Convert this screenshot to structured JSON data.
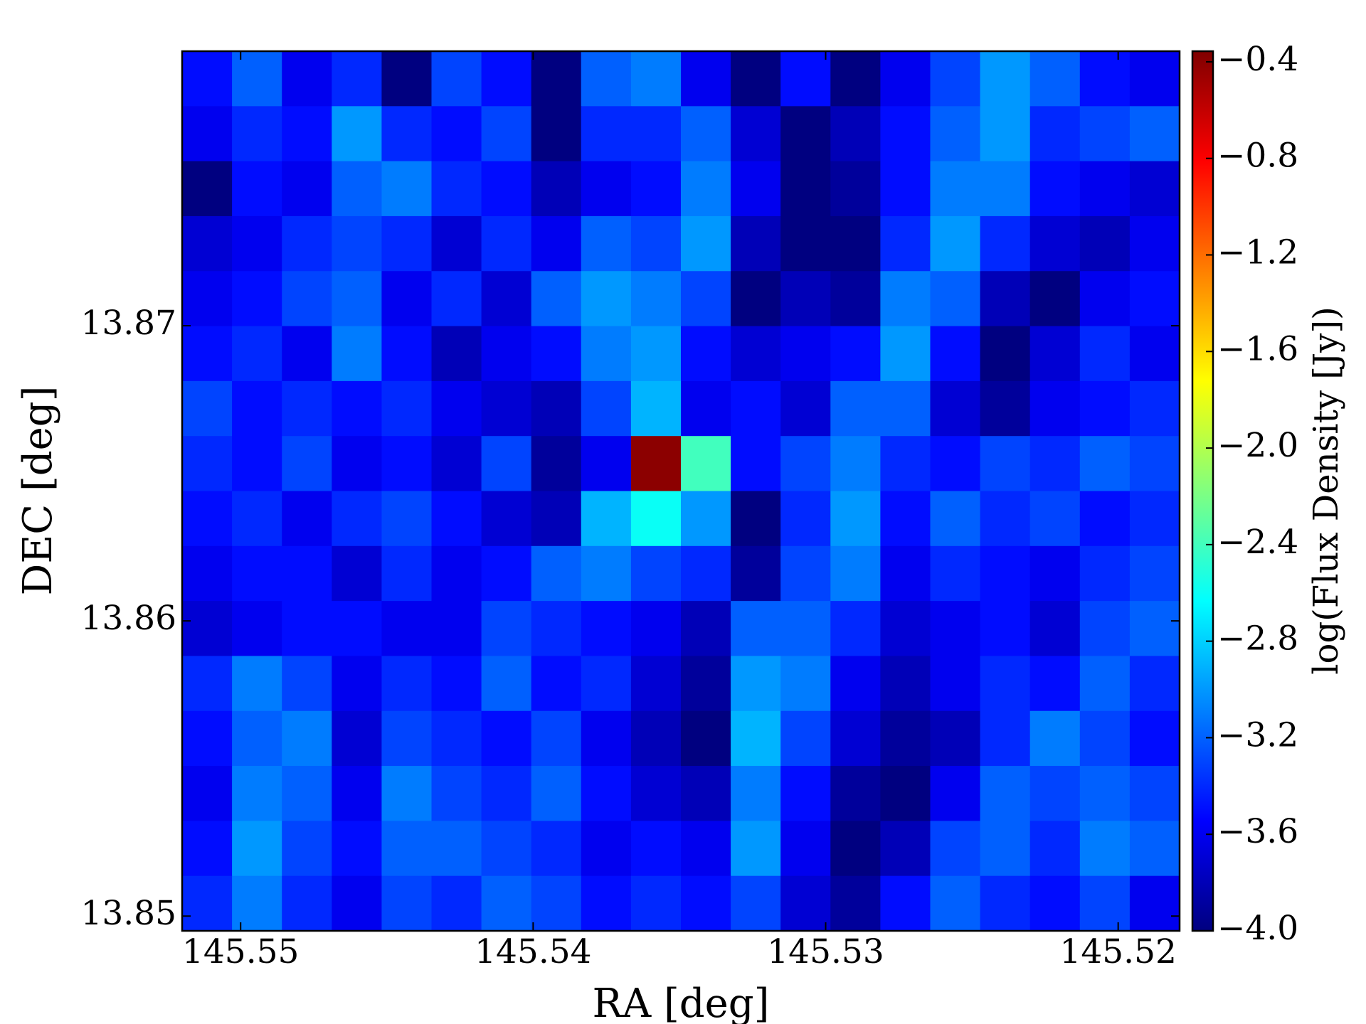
{
  "chart_data": {
    "type": "heatmap",
    "xlabel": "RA [deg]",
    "ylabel": "DEC [deg]",
    "colorbar_label": "log(Flux Density [Jy])",
    "colormap": "jet",
    "xlim": [
      145.552,
      145.5179
    ],
    "ylim": [
      13.8495,
      13.8793
    ],
    "xticks": [
      145.55,
      145.54,
      145.53,
      145.52
    ],
    "yticks": [
      13.85,
      13.86,
      13.87
    ],
    "clim": [
      -4.0,
      -0.356
    ],
    "cticks": [
      {
        "value": -4.0,
        "label": "−4.0"
      },
      {
        "value": -3.6,
        "label": "−3.6"
      },
      {
        "value": -3.2,
        "label": "−3.2"
      },
      {
        "value": -2.8,
        "label": "−2.8"
      },
      {
        "value": -2.4,
        "label": "−2.4"
      },
      {
        "value": -2.0,
        "label": "−2.0"
      },
      {
        "value": -1.6,
        "label": "−1.6"
      },
      {
        "value": -1.2,
        "label": "−1.2"
      },
      {
        "value": -0.8,
        "label": "−0.8"
      },
      {
        "value": -0.4,
        "label": "−0.4"
      }
    ],
    "z": [
      [
        -3.5,
        -3.2,
        -3.6,
        -3.4,
        -4.0,
        -3.3,
        -3.5,
        -4.0,
        -3.2,
        -3.1,
        -3.6,
        -4.0,
        -3.5,
        -4.0,
        -3.6,
        -3.3,
        -3.0,
        -3.2,
        -3.5,
        -3.6
      ],
      [
        -3.6,
        -3.4,
        -3.5,
        -3.0,
        -3.4,
        -3.5,
        -3.3,
        -4.0,
        -3.4,
        -3.4,
        -3.2,
        -3.7,
        -4.0,
        -3.8,
        -3.5,
        -3.2,
        -3.0,
        -3.4,
        -3.3,
        -3.2
      ],
      [
        -4.0,
        -3.5,
        -3.6,
        -3.2,
        -3.1,
        -3.4,
        -3.5,
        -3.8,
        -3.6,
        -3.5,
        -3.1,
        -3.6,
        -4.0,
        -3.9,
        -3.5,
        -3.1,
        -3.1,
        -3.5,
        -3.6,
        -3.7
      ],
      [
        -3.7,
        -3.6,
        -3.4,
        -3.3,
        -3.4,
        -3.7,
        -3.4,
        -3.6,
        -3.2,
        -3.3,
        -3.0,
        -3.8,
        -4.0,
        -4.0,
        -3.4,
        -3.0,
        -3.4,
        -3.7,
        -3.8,
        -3.6
      ],
      [
        -3.6,
        -3.5,
        -3.3,
        -3.2,
        -3.6,
        -3.4,
        -3.7,
        -3.2,
        -3.0,
        -3.1,
        -3.3,
        -4.0,
        -3.8,
        -3.9,
        -3.1,
        -3.2,
        -3.8,
        -4.0,
        -3.6,
        -3.5
      ],
      [
        -3.5,
        -3.4,
        -3.6,
        -3.1,
        -3.5,
        -3.8,
        -3.6,
        -3.5,
        -3.1,
        -3.0,
        -3.5,
        -3.7,
        -3.6,
        -3.5,
        -3.0,
        -3.5,
        -4.0,
        -3.7,
        -3.4,
        -3.6
      ],
      [
        -3.3,
        -3.5,
        -3.4,
        -3.5,
        -3.4,
        -3.6,
        -3.7,
        -3.8,
        -3.3,
        -2.9,
        -3.6,
        -3.5,
        -3.7,
        -3.2,
        -3.2,
        -3.7,
        -3.9,
        -3.6,
        -3.5,
        -3.4
      ],
      [
        -3.4,
        -3.5,
        -3.3,
        -3.6,
        -3.5,
        -3.7,
        -3.3,
        -3.9,
        -3.6,
        -0.4,
        -2.4,
        -3.5,
        -3.3,
        -3.1,
        -3.4,
        -3.5,
        -3.3,
        -3.4,
        -3.2,
        -3.3
      ],
      [
        -3.5,
        -3.4,
        -3.6,
        -3.4,
        -3.3,
        -3.5,
        -3.7,
        -3.8,
        -2.9,
        -2.6,
        -3.0,
        -4.0,
        -3.4,
        -3.0,
        -3.5,
        -3.2,
        -3.4,
        -3.3,
        -3.5,
        -3.4
      ],
      [
        -3.6,
        -3.5,
        -3.5,
        -3.7,
        -3.4,
        -3.6,
        -3.5,
        -3.2,
        -3.1,
        -3.3,
        -3.4,
        -3.9,
        -3.3,
        -3.1,
        -3.6,
        -3.4,
        -3.5,
        -3.6,
        -3.4,
        -3.3
      ],
      [
        -3.7,
        -3.6,
        -3.5,
        -3.5,
        -3.6,
        -3.6,
        -3.3,
        -3.4,
        -3.5,
        -3.6,
        -3.8,
        -3.2,
        -3.2,
        -3.4,
        -3.7,
        -3.6,
        -3.5,
        -3.7,
        -3.3,
        -3.2
      ],
      [
        -3.4,
        -3.1,
        -3.3,
        -3.6,
        -3.4,
        -3.5,
        -3.2,
        -3.5,
        -3.4,
        -3.7,
        -3.9,
        -3.0,
        -3.1,
        -3.6,
        -3.8,
        -3.6,
        -3.4,
        -3.5,
        -3.2,
        -3.4
      ],
      [
        -3.5,
        -3.2,
        -3.1,
        -3.7,
        -3.3,
        -3.4,
        -3.5,
        -3.3,
        -3.6,
        -3.8,
        -4.0,
        -2.9,
        -3.3,
        -3.7,
        -3.9,
        -3.8,
        -3.4,
        -3.1,
        -3.3,
        -3.5
      ],
      [
        -3.6,
        -3.1,
        -3.2,
        -3.6,
        -3.1,
        -3.3,
        -3.4,
        -3.2,
        -3.5,
        -3.7,
        -3.8,
        -3.1,
        -3.5,
        -3.9,
        -4.0,
        -3.6,
        -3.2,
        -3.3,
        -3.2,
        -3.3
      ],
      [
        -3.5,
        -3.0,
        -3.3,
        -3.5,
        -3.2,
        -3.2,
        -3.3,
        -3.4,
        -3.6,
        -3.5,
        -3.6,
        -3.0,
        -3.6,
        -4.0,
        -3.8,
        -3.3,
        -3.2,
        -3.4,
        -3.1,
        -3.2
      ],
      [
        -3.4,
        -3.1,
        -3.4,
        -3.6,
        -3.3,
        -3.4,
        -3.2,
        -3.3,
        -3.5,
        -3.4,
        -3.5,
        -3.3,
        -3.7,
        -3.9,
        -3.5,
        -3.2,
        -3.4,
        -3.5,
        -3.3,
        -3.6
      ]
    ]
  }
}
